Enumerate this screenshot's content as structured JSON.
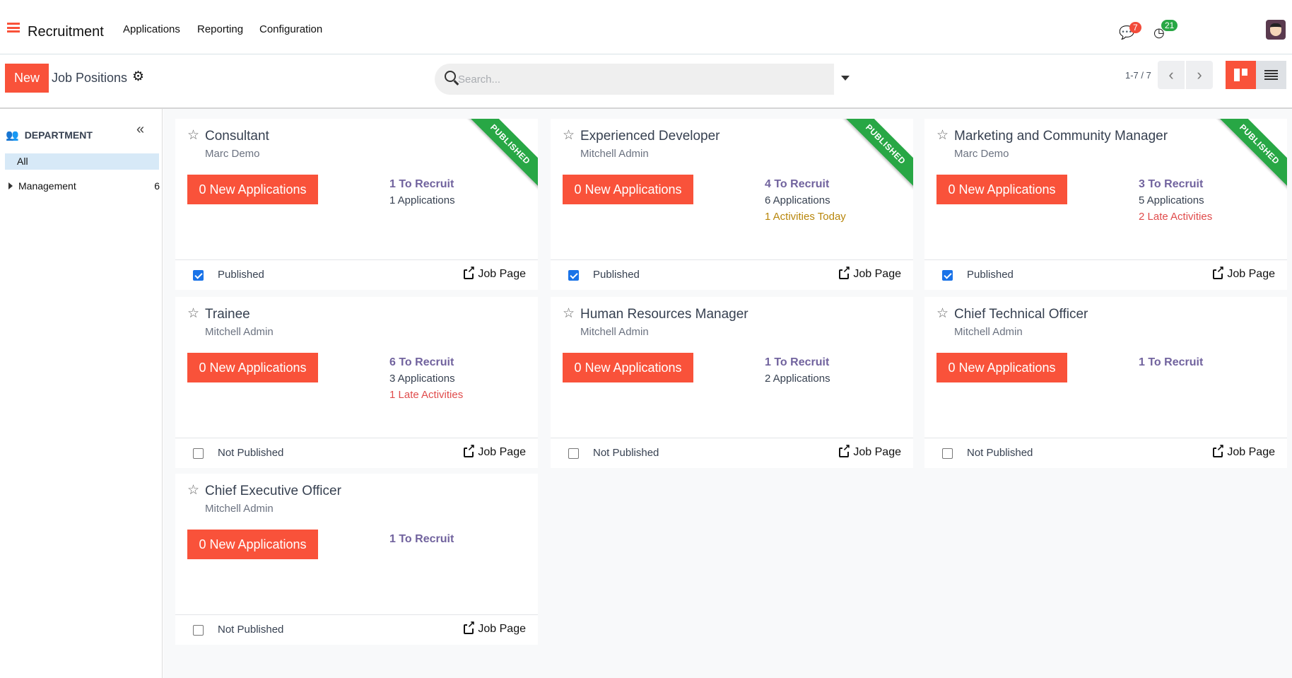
{
  "topbar": {
    "app_title": "Recruitment",
    "menu": [
      "Applications",
      "Reporting",
      "Configuration"
    ],
    "messages_count": "7",
    "activities_count": "21"
  },
  "controls": {
    "new_label": "New",
    "breadcrumb": "Job Positions",
    "search_placeholder": "Search...",
    "pager": "1-7 / 7"
  },
  "sidebar": {
    "heading": "DEPARTMENT",
    "items": [
      {
        "label": "All",
        "selected": true
      },
      {
        "label": "Management",
        "count": "6"
      }
    ]
  },
  "colors": {
    "accent": "#f9523a",
    "published_ribbon": "#28a745",
    "to_recruit": "#71639e",
    "late": "#e04b4b"
  },
  "cards": [
    {
      "title": "Consultant",
      "owner": "Marc Demo",
      "new_apps": "0 New Applications",
      "to_recruit": "1 To Recruit",
      "applications": "1 Applications",
      "activity": "",
      "ribbon": "PUBLISHED",
      "published": true,
      "pub_label": "Published",
      "job_page": "Job Page"
    },
    {
      "title": "Experienced Developer",
      "owner": "Mitchell Admin",
      "new_apps": "0 New Applications",
      "to_recruit": "4 To Recruit",
      "applications": "6 Applications",
      "activity": "1 Activities Today",
      "activity_type": "today",
      "ribbon": "PUBLISHED",
      "published": true,
      "pub_label": "Published",
      "job_page": "Job Page"
    },
    {
      "title": "Marketing and Community Manager",
      "owner": "Marc Demo",
      "new_apps": "0 New Applications",
      "to_recruit": "3 To Recruit",
      "applications": "5 Applications",
      "activity": "2 Late Activities",
      "activity_type": "late",
      "ribbon": "PUBLISHED",
      "published": true,
      "pub_label": "Published",
      "job_page": "Job Page"
    },
    {
      "title": "Trainee",
      "owner": "Mitchell Admin",
      "new_apps": "0 New Applications",
      "to_recruit": "6 To Recruit",
      "applications": "3 Applications",
      "activity": "1 Late Activities",
      "activity_type": "late",
      "published": false,
      "pub_label": "Not Published",
      "job_page": "Job Page"
    },
    {
      "title": "Human Resources Manager",
      "owner": "Mitchell Admin",
      "new_apps": "0 New Applications",
      "to_recruit": "1 To Recruit",
      "applications": "2 Applications",
      "activity": "",
      "published": false,
      "pub_label": "Not Published",
      "job_page": "Job Page"
    },
    {
      "title": "Chief Technical Officer",
      "owner": "Mitchell Admin",
      "new_apps": "0 New Applications",
      "to_recruit": "1 To Recruit",
      "applications": "",
      "activity": "",
      "published": false,
      "pub_label": "Not Published",
      "job_page": "Job Page"
    },
    {
      "title": "Chief Executive Officer",
      "owner": "Mitchell Admin",
      "new_apps": "0 New Applications",
      "to_recruit": "1 To Recruit",
      "applications": "",
      "activity": "",
      "published": false,
      "pub_label": "Not Published",
      "job_page": "Job Page"
    }
  ]
}
